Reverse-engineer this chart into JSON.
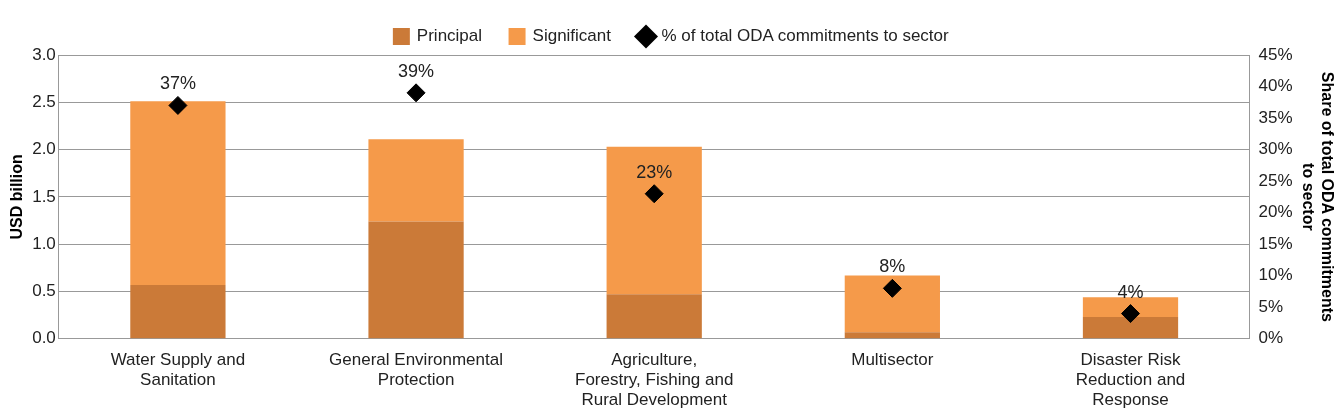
{
  "chart_data": {
    "type": "bar",
    "stacked": true,
    "categories": [
      "Water Supply and Sanitation",
      "General Environmental Protection",
      "Agriculture, Forestry, Fishing and Rural Development",
      "Multisector",
      "Disaster Risk Reduction and Response"
    ],
    "series": [
      {
        "name": "Principal",
        "color": "#cb7a38",
        "values": [
          0.57,
          1.24,
          0.47,
          0.07,
          0.23
        ]
      },
      {
        "name": "Significant",
        "color": "#f59a4a",
        "values": [
          1.94,
          0.87,
          1.56,
          0.6,
          0.21
        ]
      },
      {
        "name": "% of total ODA commitments to sector",
        "type": "scatter",
        "axis": "y2",
        "color": "#000000",
        "marker": "diamond",
        "x": [
          "Water Supply and Sanitation",
          "General Environmental Protection",
          "Agriculture, Forestry, Fishing and Rural Development",
          "Multisector",
          "Disaster Risk Reduction and Response"
        ],
        "values": [
          37,
          39,
          23,
          8,
          4
        ],
        "value_labels": [
          "37%",
          "39%",
          "23%",
          "8%",
          "4%"
        ]
      }
    ],
    "ylabel": "USD billion",
    "y2label": "Share of total ODA commitments to sector",
    "ylim": [
      0,
      3
    ],
    "yticks": [
      {
        "value": 0,
        "label": "0.0"
      },
      {
        "value": 0.5,
        "label": "0.5"
      },
      {
        "value": 1,
        "label": "1.0"
      },
      {
        "value": 1.5,
        "label": "1.5"
      },
      {
        "value": 2,
        "label": "2.0"
      },
      {
        "value": 2.5,
        "label": "2.5"
      },
      {
        "value": 3,
        "label": "3.0"
      }
    ],
    "y2lim": [
      0,
      45
    ],
    "y2ticks": [
      {
        "value": 0,
        "label": "0%"
      },
      {
        "value": 5,
        "label": "5%"
      },
      {
        "value": 10,
        "label": "10%"
      },
      {
        "value": 15,
        "label": "15%"
      },
      {
        "value": 20,
        "label": "20%"
      },
      {
        "value": 25,
        "label": "25%"
      },
      {
        "value": 30,
        "label": "30%"
      },
      {
        "value": 35,
        "label": "35%"
      },
      {
        "value": 40,
        "label": "40%"
      },
      {
        "value": 45,
        "label": "45%"
      }
    ],
    "grid": "y",
    "legend": "top"
  }
}
